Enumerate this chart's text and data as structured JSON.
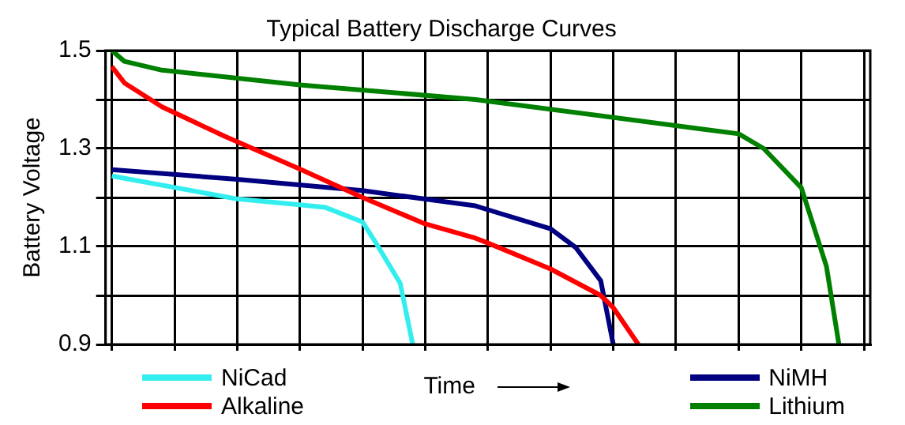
{
  "chart_data": {
    "type": "line",
    "title": "Typical Battery Discharge Curves",
    "xlabel": "Time",
    "ylabel": "Battery Voltage",
    "categories": [
      null,
      null,
      null,
      null,
      null,
      null,
      null,
      null,
      null,
      null,
      null,
      null,
      null,
      null,
      null,
      null,
      null,
      null,
      null,
      null,
      null,
      null,
      null,
      null,
      null,
      null,
      null,
      null,
      null,
      null,
      null,
      null,
      null,
      null,
      null,
      null,
      null,
      null,
      null,
      null,
      null,
      null,
      null,
      null,
      null,
      null,
      null,
      null,
      null,
      null,
      null,
      null,
      null,
      null,
      null,
      null,
      null,
      null,
      null,
      null,
      null
    ],
    "ylim": [
      0.9,
      1.5
    ],
    "yticks": [
      0.9,
      {
        "value": 1.0,
        "label": null
      },
      1.1,
      {
        "value": 1.2,
        "label": null
      },
      1.3,
      {
        "value": 1.4,
        "label": null
      },
      1.5
    ],
    "tick_labels": "y",
    "grid": true,
    "legend": "bottom",
    "marker": "none",
    "line_style": "solid",
    "series": [
      {
        "name": "NiCad",
        "color": "#33eeee",
        "values": [
          1.244,
          null,
          null,
          null,
          null,
          null,
          null,
          null,
          null,
          null,
          1.197,
          null,
          null,
          null,
          null,
          1.185,
          null,
          1.18,
          null,
          null,
          1.15,
          1.11,
          null,
          1.025,
          0.9,
          null,
          null,
          null,
          null,
          null,
          null,
          null,
          null,
          null,
          null,
          null,
          null,
          null,
          null,
          null,
          null,
          null,
          null,
          null,
          null,
          null,
          null,
          null,
          null,
          null,
          null,
          null,
          null,
          null,
          null,
          null,
          null,
          null,
          null,
          null,
          null
        ]
      },
      {
        "name": "Alkaline",
        "color": "#ff0000",
        "values": [
          1.467,
          1.434,
          null,
          null,
          1.385,
          null,
          null,
          null,
          null,
          1.325,
          null,
          null,
          null,
          null,
          null,
          1.258,
          null,
          null,
          null,
          null,
          1.2,
          null,
          null,
          null,
          null,
          1.146,
          null,
          null,
          null,
          1.117,
          1.107,
          null,
          null,
          null,
          null,
          1.054,
          null,
          null,
          null,
          1.0,
          0.975,
          null,
          0.9,
          null,
          null,
          null,
          null,
          null,
          null,
          null,
          null,
          null,
          null,
          null,
          null,
          null,
          null,
          null,
          null,
          null,
          null
        ]
      },
      {
        "name": "NiMH",
        "color": "#000080",
        "values": [
          1.257,
          null,
          null,
          null,
          null,
          null,
          null,
          null,
          null,
          null,
          1.237,
          null,
          null,
          null,
          null,
          null,
          null,
          null,
          null,
          null,
          1.214,
          null,
          null,
          null,
          null,
          null,
          null,
          null,
          null,
          1.183,
          1.175,
          null,
          null,
          null,
          null,
          1.136,
          null,
          1.098,
          null,
          1.03,
          0.9,
          null,
          null,
          null,
          null,
          null,
          null,
          null,
          null,
          null,
          null,
          null,
          null,
          null,
          null,
          null,
          null,
          null,
          null,
          null,
          null
        ]
      },
      {
        "name": "Lithium",
        "color": "#008000",
        "values": [
          1.5,
          1.478,
          null,
          null,
          1.46,
          null,
          null,
          null,
          null,
          null,
          null,
          null,
          null,
          null,
          null,
          1.43,
          null,
          null,
          null,
          null,
          null,
          null,
          null,
          null,
          null,
          null,
          null,
          null,
          null,
          1.4,
          null,
          null,
          null,
          null,
          null,
          null,
          null,
          null,
          null,
          null,
          null,
          null,
          null,
          null,
          null,
          null,
          null,
          1.34,
          null,
          null,
          1.33,
          null,
          1.3,
          null,
          null,
          1.22,
          null,
          1.06,
          0.9,
          null,
          null
        ]
      }
    ]
  }
}
